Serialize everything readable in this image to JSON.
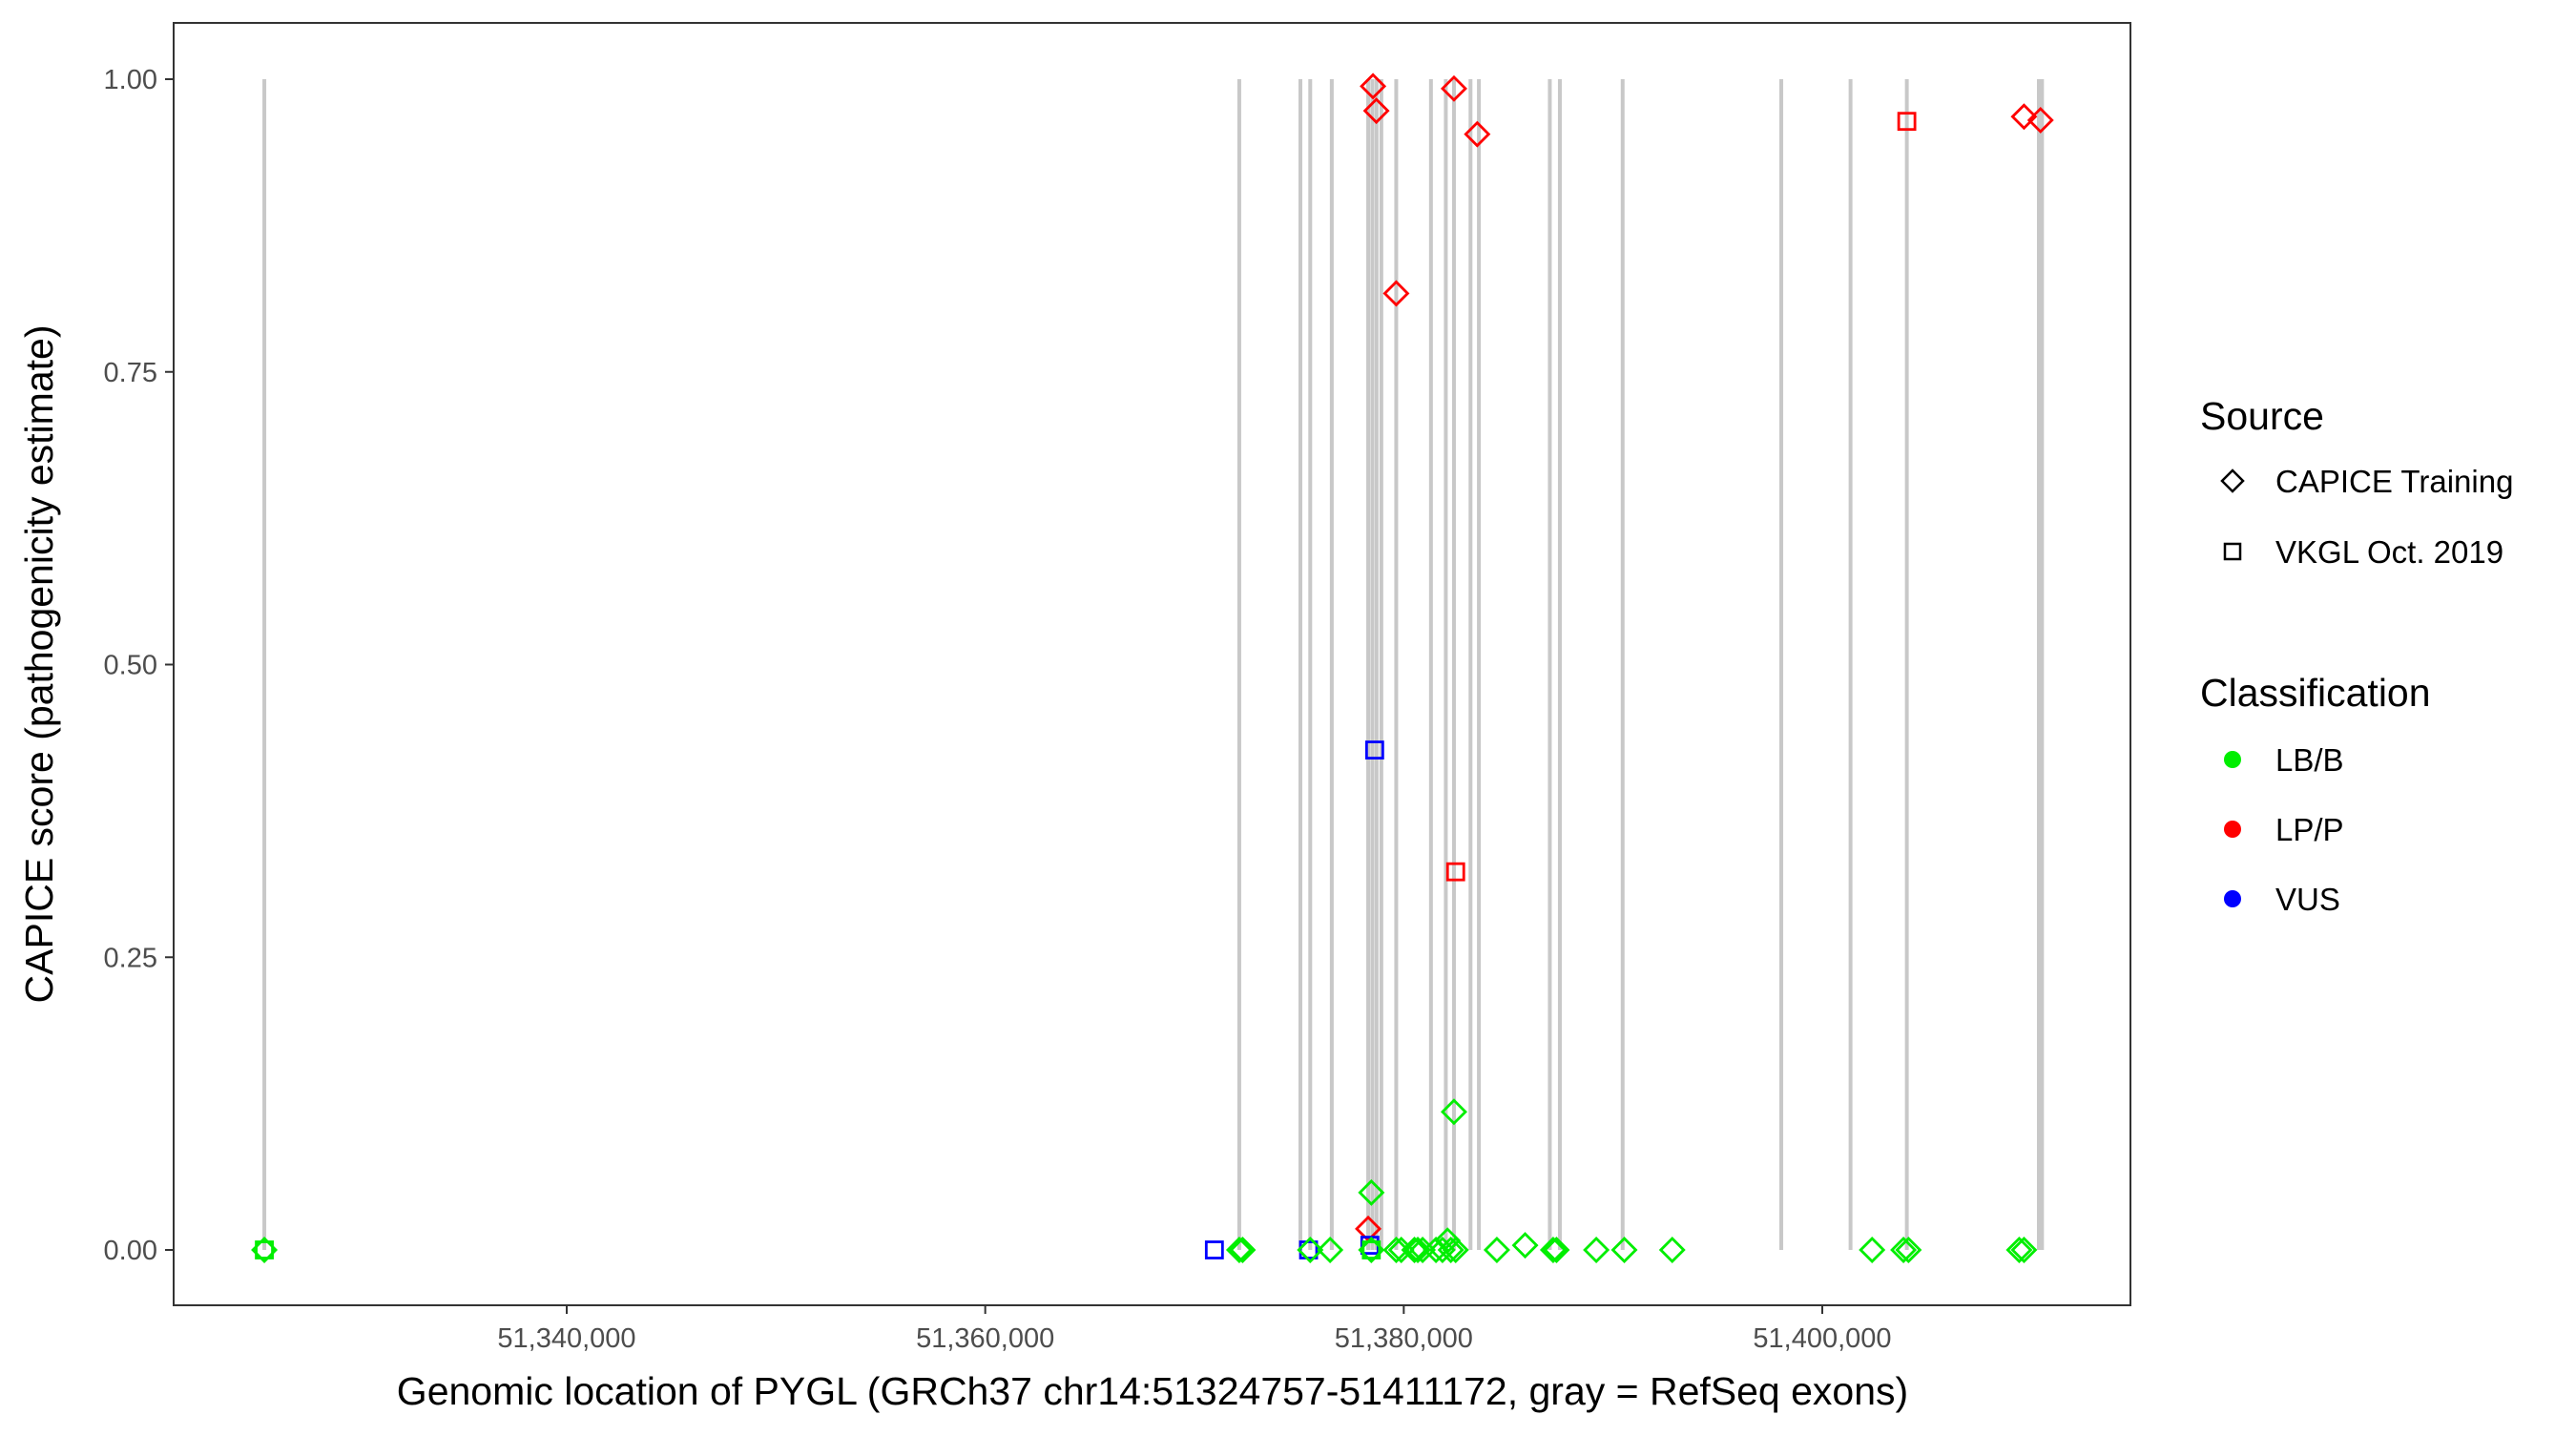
{
  "chart_data": {
    "type": "scatter",
    "xlabel": "Genomic location of PYGL (GRCh37 chr14:51324757-51411172, gray = RefSeq exons)",
    "ylabel": "CAPICE score (pathogenicity estimate)",
    "xlim": [
      51322800,
      51413300
    ],
    "ylim": [
      -0.045,
      1.045
    ],
    "xticks": [
      51340000,
      51360000,
      51380000,
      51400000
    ],
    "xtick_labels": [
      "51,340,000",
      "51,360,000",
      "51,380,000",
      "51,400,000"
    ],
    "yticks": [
      0,
      0.25,
      0.5,
      0.75,
      1
    ],
    "ytick_labels": [
      "0.00",
      "0.25",
      "0.50",
      "0.75",
      "1.00"
    ],
    "grid": false,
    "legend_placement": "right",
    "exon_color": "#c8c8c8",
    "exons": [
      51325550,
      51372140,
      51375060,
      51375530,
      51376560,
      51378300,
      51378500,
      51378700,
      51378930,
      51379640,
      51381300,
      51382010,
      51382400,
      51383190,
      51383590,
      51386980,
      51387460,
      51390460,
      51398040,
      51401350,
      51404040,
      51410350,
      51410500
    ],
    "legend": {
      "source_title": "Source",
      "sources": [
        {
          "label": "CAPICE Training",
          "shape": "diamond"
        },
        {
          "label": "VKGL Oct. 2019",
          "shape": "square"
        }
      ],
      "class_title": "Classification",
      "classes": [
        {
          "label": "LB/B",
          "color": "#00ee00"
        },
        {
          "label": "LP/P",
          "color": "#ff0000"
        },
        {
          "label": "VUS",
          "color": "#0000ff"
        }
      ]
    },
    "series": [
      {
        "source": "CAPICE Training",
        "classification": "LP/P",
        "points": [
          [
            51378530,
            0.994
          ],
          [
            51382400,
            0.992
          ],
          [
            51378690,
            0.973
          ],
          [
            51383510,
            0.953
          ],
          [
            51379640,
            0.817
          ],
          [
            51409640,
            0.968
          ],
          [
            51410430,
            0.965
          ],
          [
            51378300,
            0.018
          ]
        ]
      },
      {
        "source": "VKGL Oct. 2019",
        "classification": "LP/P",
        "points": [
          [
            51404040,
            0.964
          ],
          [
            51382480,
            0.323
          ]
        ]
      },
      {
        "source": "VKGL Oct. 2019",
        "classification": "VUS",
        "points": [
          [
            51378610,
            0.427
          ],
          [
            51370950,
            0.0
          ],
          [
            51375450,
            0.0
          ],
          [
            51378380,
            0.004
          ]
        ]
      },
      {
        "source": "VKGL Oct. 2019",
        "classification": "LB/B",
        "points": [
          [
            51325550,
            0.0
          ],
          [
            51378450,
            0.0
          ]
        ]
      },
      {
        "source": "CAPICE Training",
        "classification": "LB/B",
        "points": [
          [
            51325550,
            0.0
          ],
          [
            51378450,
            0.049
          ],
          [
            51382400,
            0.118
          ],
          [
            51372140,
            0.0
          ],
          [
            51372300,
            0.0
          ],
          [
            51376480,
            0.0
          ],
          [
            51375530,
            0.0
          ],
          [
            51378450,
            0.0
          ],
          [
            51379640,
            0.0
          ],
          [
            51379880,
            0.0
          ],
          [
            51380510,
            0.0
          ],
          [
            51380670,
            0.0
          ],
          [
            51380900,
            0.0
          ],
          [
            51381540,
            0.0
          ],
          [
            51381850,
            0.0
          ],
          [
            51382090,
            0.008
          ],
          [
            51382250,
            0.0
          ],
          [
            51382480,
            0.0
          ],
          [
            51384450,
            0.0
          ],
          [
            51385800,
            0.004
          ],
          [
            51387140,
            0.0
          ],
          [
            51387300,
            0.0
          ],
          [
            51389200,
            0.0
          ],
          [
            51390540,
            0.0
          ],
          [
            51392830,
            0.0
          ],
          [
            51402380,
            0.0
          ],
          [
            51403880,
            0.0
          ],
          [
            51404120,
            0.0
          ],
          [
            51409410,
            0.0
          ],
          [
            51409640,
            0.0
          ]
        ]
      }
    ]
  }
}
